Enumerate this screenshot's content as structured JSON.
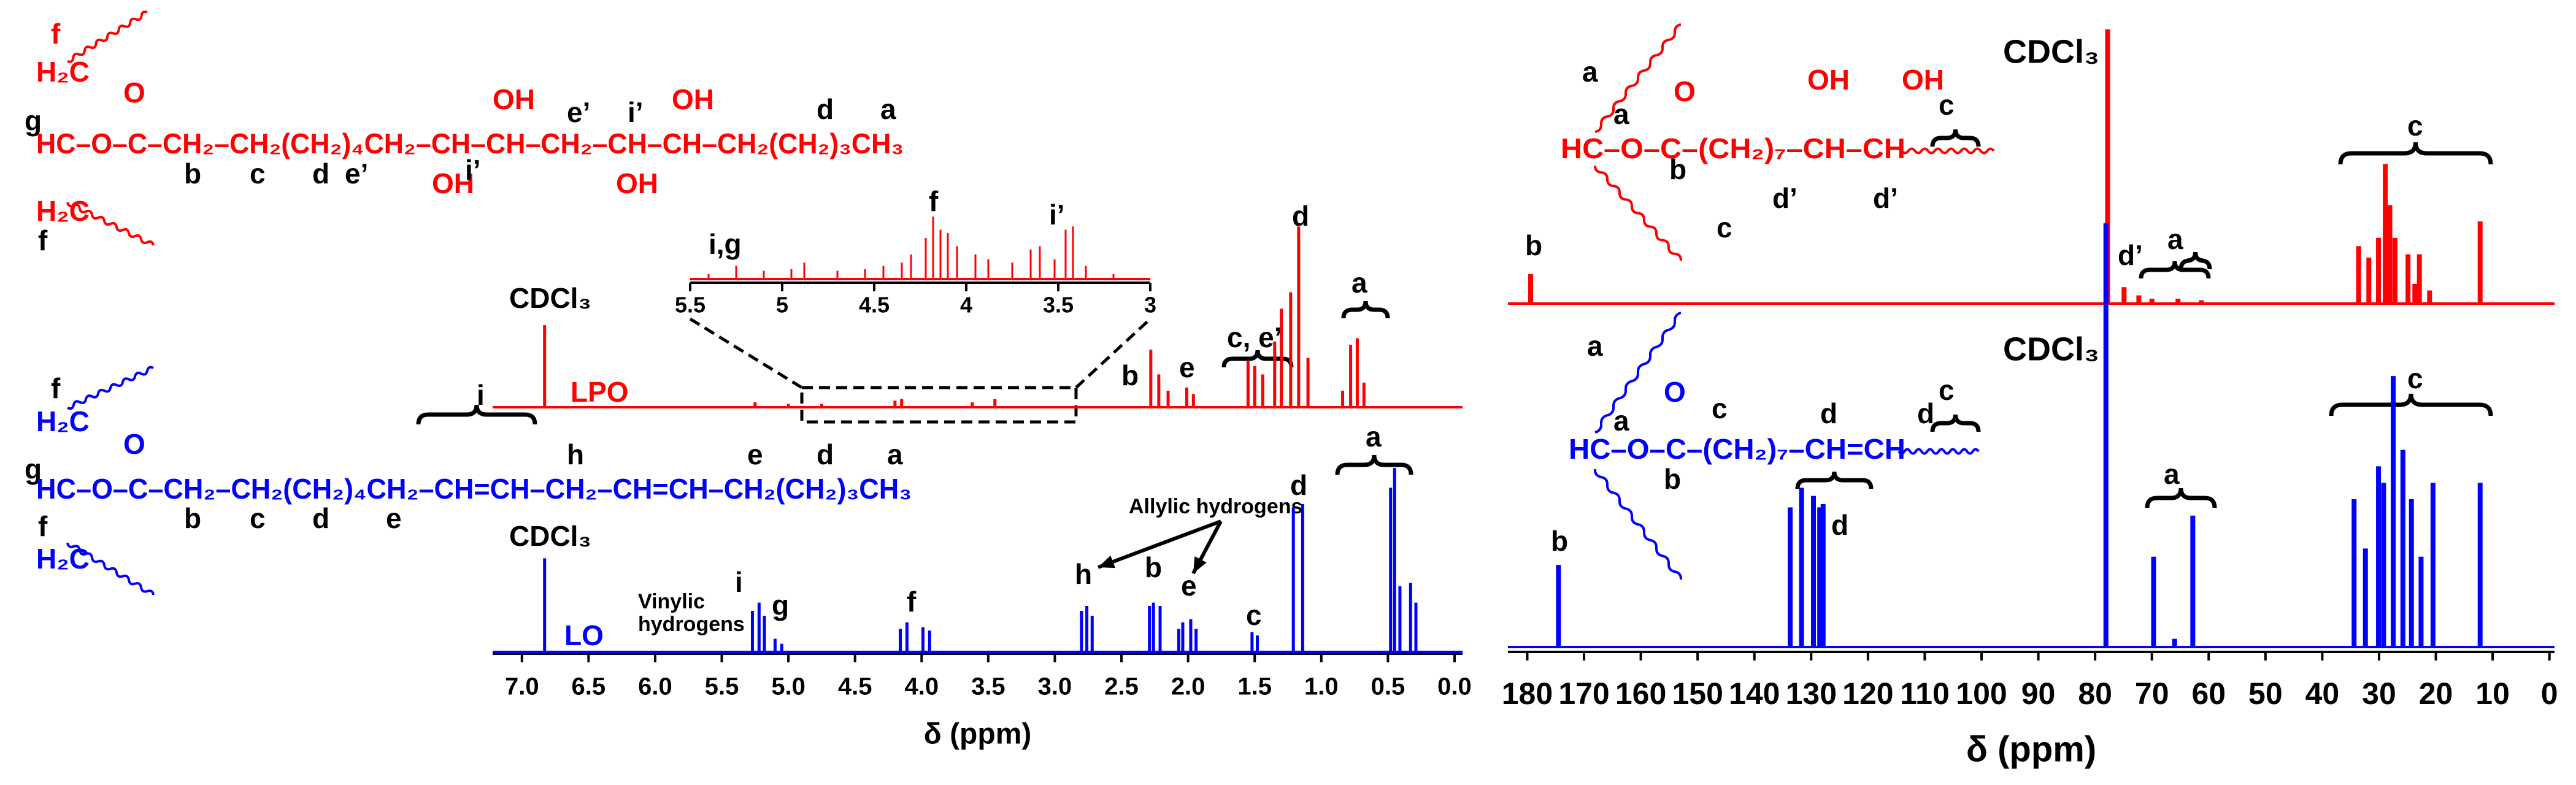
{
  "chart_data": [
    {
      "type": "spectrum",
      "xlabel": "δ (ppm)",
      "xlim": [
        7.22,
        -0.06
      ],
      "xticks": [
        {
          "value": 7,
          "label": "7.0"
        },
        6.5,
        {
          "value": 6,
          "label": "6.0"
        },
        5.5,
        {
          "value": 5,
          "label": "5.0"
        },
        4.5,
        {
          "value": 4,
          "label": "4.0"
        },
        3.5,
        {
          "value": 3,
          "label": "3.0"
        },
        2.5,
        {
          "value": 2,
          "label": "2.0"
        },
        1.5,
        {
          "value": 1,
          "label": "1.0"
        },
        0.5,
        {
          "value": 0,
          "label": "0.0"
        }
      ],
      "series": [
        {
          "name": "LPO",
          "color": "#ff0000",
          "x": [
            6.83,
            5.25,
            5.0,
            4.75,
            4.2,
            4.15,
            3.62,
            3.45,
            2.28,
            2.22,
            2.15,
            2.01,
            1.96,
            1.55,
            1.5,
            1.44,
            1.35,
            1.3,
            1.23,
            1.17,
            1.1,
            0.84,
            0.78,
            0.73,
            0.68
          ],
          "values": [
            50,
            3,
            2,
            2,
            4,
            5,
            3,
            5,
            35,
            20,
            10,
            12,
            8,
            28,
            25,
            20,
            40,
            60,
            70,
            110,
            30,
            10,
            38,
            42,
            15
          ]
        },
        {
          "name": "LO",
          "color": "#0000ff",
          "x": [
            6.83,
            5.27,
            5.22,
            5.18,
            5.1,
            5.05,
            4.16,
            4.11,
            3.99,
            3.94,
            2.8,
            2.76,
            2.72,
            2.29,
            2.26,
            2.21,
            2.07,
            2.04,
            1.98,
            1.94,
            1.52,
            1.48,
            1.21,
            1.14,
            0.48,
            0.45,
            0.41,
            0.33,
            0.29
          ],
          "values": [
            57,
            25,
            30,
            22,
            8,
            5,
            14,
            18,
            15,
            13,
            25,
            28,
            22,
            28,
            30,
            28,
            14,
            18,
            20,
            14,
            12,
            10,
            88,
            90,
            100,
            112,
            40,
            42,
            30
          ]
        }
      ],
      "annotations": [
        "CDCl₃",
        "CDCl₃",
        "b",
        "e",
        "c, e’",
        "d",
        "a",
        "Vinylic",
        "hydrogens",
        "i",
        "g",
        "f",
        "h",
        "Allylic hydrogens",
        "b",
        "e",
        "c",
        "d",
        "a"
      ]
    },
    {
      "type": "spectrum",
      "xlim": [
        5.5,
        3
      ],
      "xticks": [
        5.5,
        5,
        4.5,
        4,
        3.5,
        3
      ],
      "series": [
        {
          "color": "#ff0000",
          "x": [
            5.4,
            5.25,
            5.1,
            4.95,
            4.88,
            4.7,
            4.55,
            4.45,
            4.35,
            4.3,
            4.22,
            4.18,
            4.14,
            4.1,
            4.05,
            3.95,
            3.88,
            3.75,
            3.65,
            3.6,
            3.52,
            3.46,
            3.42,
            3.35,
            3.2
          ],
          "values": [
            3,
            8,
            5,
            6,
            10,
            5,
            6,
            8,
            10,
            15,
            25,
            38,
            30,
            28,
            20,
            15,
            12,
            10,
            18,
            20,
            12,
            30,
            32,
            8,
            3
          ]
        }
      ],
      "annotations": [
        "i,g",
        "f",
        "i’"
      ]
    },
    {
      "type": "spectrum",
      "xlabel": "δ (ppm)",
      "xlim": [
        183.4,
        -0.9
      ],
      "xticks": [
        180,
        170,
        160,
        150,
        140,
        130,
        120,
        110,
        100,
        90,
        80,
        70,
        60,
        50,
        40,
        30,
        20,
        10,
        0
      ],
      "series": [
        {
          "color": "#ff0000",
          "x": [
            179.4,
            77.8,
            74.9,
            72.3,
            70,
            65.4,
            61.3,
            33.6,
            31.8,
            30.1,
            28.9,
            28.1,
            27.2,
            24.9,
            23.7,
            22.9,
            21.1,
            12.2
          ],
          "values": [
            18,
            167,
            10,
            5,
            3,
            3,
            2,
            35,
            28,
            40,
            85,
            60,
            40,
            30,
            12,
            30,
            8,
            50
          ]
        },
        {
          "color": "#0000ff",
          "x": [
            174.5,
            133.7,
            131.7,
            129.6,
            128.5,
            127.9,
            78.1,
            69.7,
            66,
            62.8,
            34.4,
            32.4,
            30.1,
            29.2,
            27.5,
            25.8,
            24.3,
            22.6,
            20.5,
            12.2
          ],
          "values": [
            50,
            85,
            97,
            92,
            85,
            87,
            258,
            55,
            5,
            80,
            90,
            60,
            110,
            100,
            165,
            120,
            90,
            55,
            100,
            100
          ]
        }
      ],
      "annotations": [
        "CDCl₃",
        "b",
        "d’",
        "a",
        "c",
        "CDCl₃",
        "b",
        "d",
        "a",
        "c"
      ]
    }
  ],
  "structures": {
    "lpo_1h": [
      "f",
      "H₂C",
      "g",
      "HC–O–C–CH₂–CH₂(CH₂)₄CH₂–CH–CH–CH₂–CH–CH–CH₂(CH₂)₃CH₃",
      "O",
      "OH",
      "OH",
      "OH",
      "OH",
      "e’",
      "i’",
      "d",
      "a",
      "b",
      "c",
      "d",
      "e’",
      "i’",
      "H₂C",
      "f"
    ],
    "lo_1h": [
      "f",
      "H₂C",
      "g",
      "HC–O–C–CH₂–CH₂(CH₂)₄CH₂–CH=CH–CH₂–CH=CH–CH₂(CH₂)₃CH₃",
      "O",
      "i",
      "h",
      "e",
      "d",
      "a",
      "b",
      "c",
      "d",
      "e",
      "f",
      "H₂C"
    ],
    "lpo_13c": [
      "a",
      "a",
      "O",
      "OH",
      "OH",
      "HC–O–C–(CH₂)₇–CH–CH",
      "b",
      "d’",
      "d’",
      "c",
      "c"
    ],
    "lo_13c": [
      "a",
      "a",
      "O",
      "c",
      "d",
      "d",
      "c",
      "HC–O–C–(CH₂)₇–CH=CH",
      "b"
    ]
  }
}
